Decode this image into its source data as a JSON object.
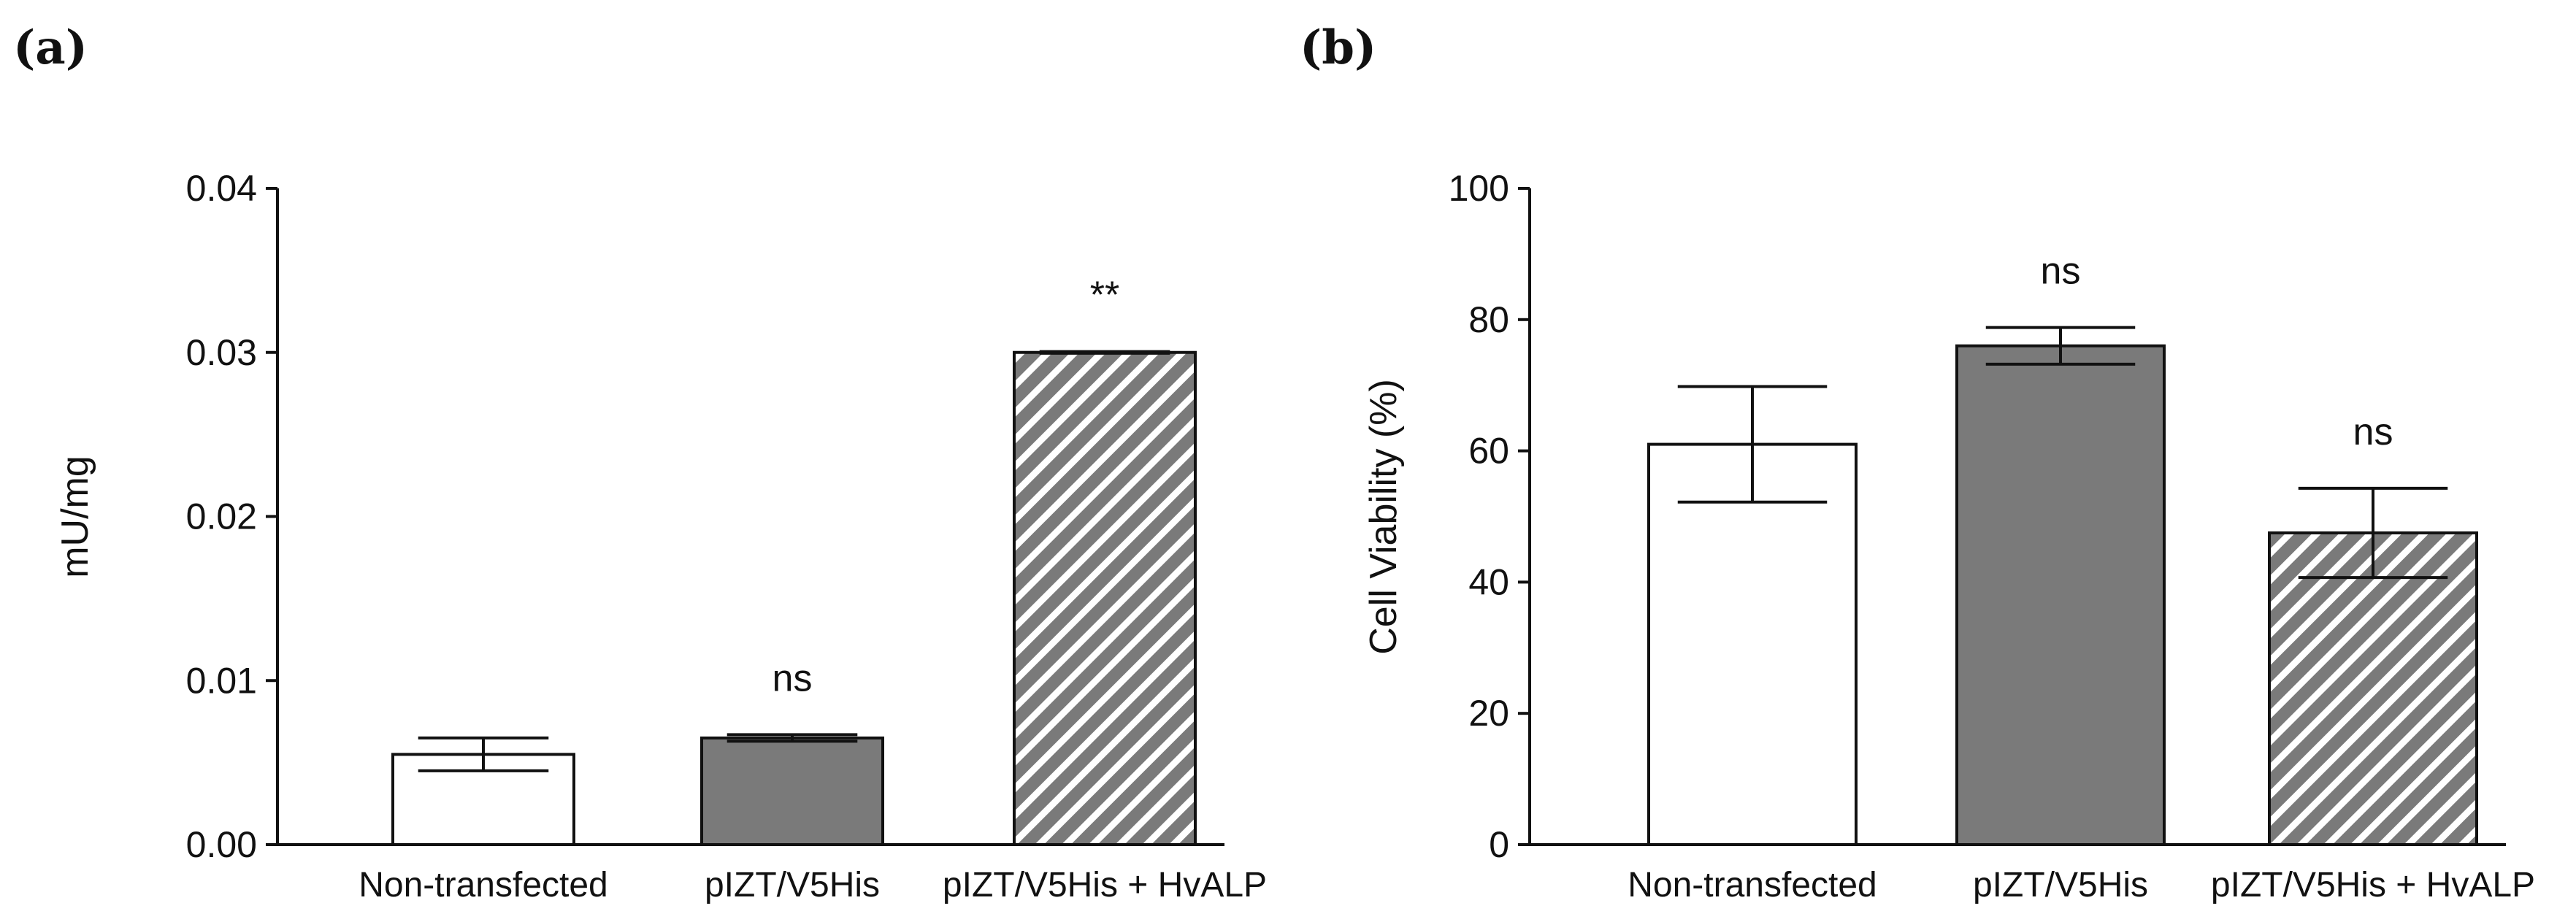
{
  "chart_data": [
    {
      "panel": "(a)",
      "type": "bar",
      "ylabel": "mU/mg",
      "ylim": [
        0,
        0.04
      ],
      "yticks": [
        "0.00",
        "0.01",
        "0.02",
        "0.03",
        "0.04"
      ],
      "ytick_values": [
        0,
        0.01,
        0.02,
        0.03,
        0.04
      ],
      "categories": [
        "Non-transfected",
        "pIZT/V5His",
        "pIZT/V5His + HvALP"
      ],
      "values": [
        0.0055,
        0.0065,
        0.03
      ],
      "errors": [
        0.001,
        0.0002,
        5e-05
      ],
      "fills": [
        "white",
        "gray",
        "hatch"
      ],
      "annotations": [
        "",
        "ns",
        "**"
      ]
    },
    {
      "panel": "(b)",
      "type": "bar",
      "ylabel": "Cell Viability (%)",
      "ylim": [
        0,
        100
      ],
      "yticks": [
        "0",
        "20",
        "40",
        "60",
        "80",
        "100"
      ],
      "ytick_values": [
        0,
        20,
        40,
        60,
        80,
        100
      ],
      "categories": [
        "Non-transfected",
        "pIZT/V5His",
        "pIZT/V5His + HvALP"
      ],
      "values": [
        61,
        76,
        47.5
      ],
      "errors": [
        8.8,
        2.8,
        6.8
      ],
      "fills": [
        "white",
        "gray",
        "hatch"
      ],
      "annotations": [
        "",
        "ns",
        "ns"
      ]
    }
  ],
  "colors": {
    "gray": "#7a7a7a",
    "white": "#ffffff",
    "hatch_bg": "#7a7a7a",
    "hatch_fg": "#ffffff",
    "ink": "#111111"
  }
}
